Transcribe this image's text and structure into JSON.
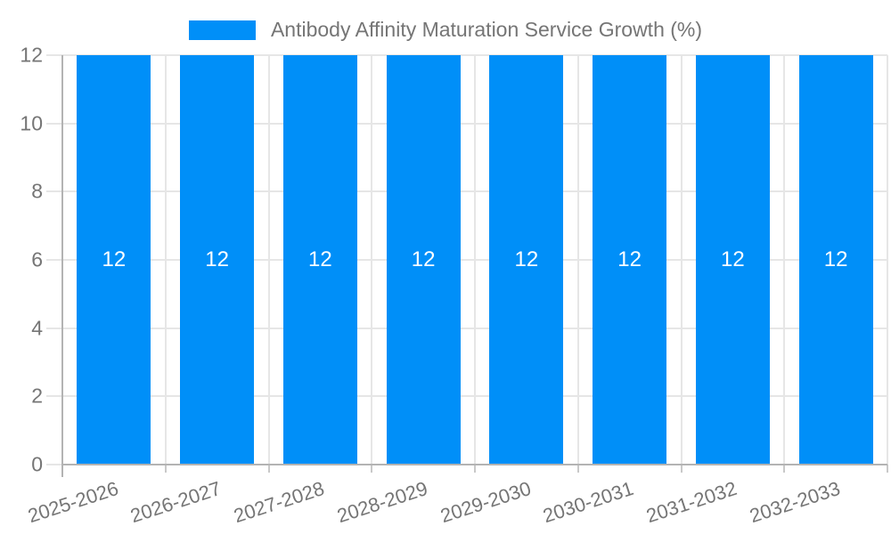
{
  "legend": {
    "label": "Antibody Affinity Maturation Service Growth (%)"
  },
  "chart_data": {
    "type": "bar",
    "title": "Antibody Affinity Maturation Service Growth (%)",
    "categories": [
      "2025-2026",
      "2026-2027",
      "2027-2028",
      "2028-2029",
      "2029-2030",
      "2030-2031",
      "2031-2032",
      "2032-2033"
    ],
    "series": [
      {
        "name": "Antibody Affinity Maturation Service Growth (%)",
        "values": [
          12,
          12,
          12,
          12,
          12,
          12,
          12,
          12
        ]
      }
    ],
    "bar_labels": [
      "12",
      "12",
      "12",
      "12",
      "12",
      "12",
      "12",
      "12"
    ],
    "xlabel": "",
    "ylabel": "",
    "ylim": [
      0,
      12
    ],
    "yticks": [
      0,
      2,
      4,
      6,
      8,
      10,
      12
    ],
    "grid": true,
    "legend_position": "top",
    "colors": {
      "bar": "#008FF8",
      "grid": "#e6e6e6",
      "axis": "#b3b3b3",
      "tick": "#c9c9c9",
      "label_text": "#757575",
      "bar_label_text": "#ffffff"
    }
  }
}
